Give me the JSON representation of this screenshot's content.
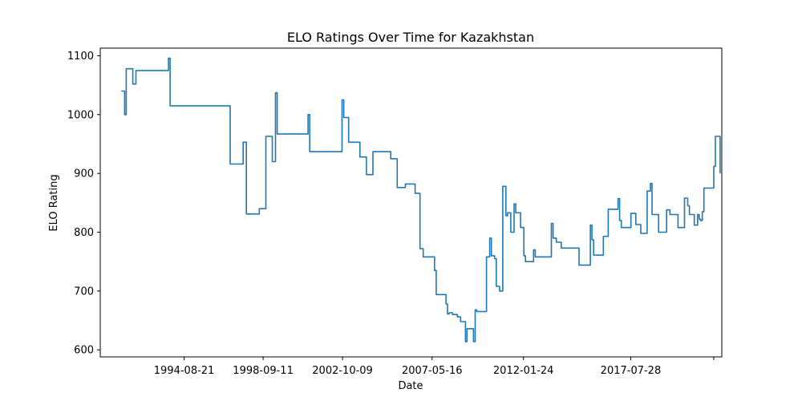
{
  "chart_data": {
    "type": "line",
    "title": "ELO Ratings Over Time for Kazakhstan",
    "xlabel": "Date",
    "ylabel": "ELO Rating",
    "grid": false,
    "legend": "none",
    "x_tick_labels": [
      "1994-08-21",
      "1998-09-11",
      "2002-10-09",
      "2007-05-16",
      "2012-01-24",
      "2017-07-28",
      ""
    ],
    "x_tick_dates": [
      "1994-08-21",
      "1998-09-11",
      "2002-10-09",
      "2007-05-16",
      "2012-01-24",
      "2017-07-28",
      "2021-11-01"
    ],
    "xlim": [
      "1990-05-01",
      "2022-04-01"
    ],
    "y_ticks": [
      600,
      700,
      800,
      900,
      1000,
      1100
    ],
    "ylim": [
      588,
      1113
    ],
    "series": [
      {
        "color": "#1f77b4",
        "points": [
          [
            "1991-06-01",
            1040
          ],
          [
            "1991-07-01",
            1040
          ],
          [
            "1991-08-01",
            1000
          ],
          [
            "1991-09-01",
            1078
          ],
          [
            "1991-12-01",
            1078
          ],
          [
            "1992-01-01",
            1052
          ],
          [
            "1992-03-01",
            1075
          ],
          [
            "1993-10-01",
            1075
          ],
          [
            "1993-11-01",
            1096
          ],
          [
            "1993-12-01",
            1015
          ],
          [
            "1996-11-01",
            1015
          ],
          [
            "1997-01-01",
            916
          ],
          [
            "1997-07-01",
            916
          ],
          [
            "1997-09-01",
            953
          ],
          [
            "1997-11-01",
            831
          ],
          [
            "1998-05-01",
            831
          ],
          [
            "1998-07-01",
            840
          ],
          [
            "1998-11-01",
            963
          ],
          [
            "1999-01-01",
            963
          ],
          [
            "1999-03-01",
            920
          ],
          [
            "1999-05-01",
            1037
          ],
          [
            "1999-06-01",
            967
          ],
          [
            "2000-12-01",
            967
          ],
          [
            "2001-01-01",
            1000
          ],
          [
            "2001-02-01",
            937
          ],
          [
            "2002-09-01",
            937
          ],
          [
            "2002-10-01",
            1025
          ],
          [
            "2002-11-01",
            995
          ],
          [
            "2003-01-01",
            995
          ],
          [
            "2003-02-01",
            953
          ],
          [
            "2003-08-01",
            953
          ],
          [
            "2003-09-01",
            928
          ],
          [
            "2003-11-01",
            928
          ],
          [
            "2004-01-01",
            898
          ],
          [
            "2004-03-01",
            898
          ],
          [
            "2004-05-01",
            937
          ],
          [
            "2005-02-01",
            937
          ],
          [
            "2005-04-01",
            925
          ],
          [
            "2005-07-01",
            925
          ],
          [
            "2005-08-01",
            876
          ],
          [
            "2005-11-01",
            876
          ],
          [
            "2006-01-01",
            882
          ],
          [
            "2006-06-01",
            882
          ],
          [
            "2006-07-01",
            866
          ],
          [
            "2006-08-01",
            866
          ],
          [
            "2006-10-01",
            772
          ],
          [
            "2006-12-01",
            758
          ],
          [
            "2007-06-01",
            758
          ],
          [
            "2007-07-01",
            735
          ],
          [
            "2007-08-01",
            694
          ],
          [
            "2007-12-01",
            694
          ],
          [
            "2008-02-01",
            678
          ],
          [
            "2008-03-01",
            661
          ],
          [
            "2008-04-01",
            663
          ],
          [
            "2008-06-01",
            660
          ],
          [
            "2008-09-01",
            656
          ],
          [
            "2008-11-01",
            648
          ],
          [
            "2009-02-01",
            614
          ],
          [
            "2009-03-01",
            636
          ],
          [
            "2009-06-01",
            636
          ],
          [
            "2009-07-01",
            614
          ],
          [
            "2009-08-01",
            668
          ],
          [
            "2009-09-01",
            665
          ],
          [
            "2010-01-01",
            665
          ],
          [
            "2010-03-01",
            758
          ],
          [
            "2010-05-01",
            790
          ],
          [
            "2010-06-01",
            760
          ],
          [
            "2010-08-01",
            755
          ],
          [
            "2010-09-01",
            708
          ],
          [
            "2010-11-01",
            700
          ],
          [
            "2011-01-01",
            878
          ],
          [
            "2011-02-01",
            878
          ],
          [
            "2011-03-01",
            828
          ],
          [
            "2011-04-01",
            833
          ],
          [
            "2011-05-01",
            833
          ],
          [
            "2011-06-01",
            800
          ],
          [
            "2011-08-01",
            848
          ],
          [
            "2011-09-01",
            833
          ],
          [
            "2011-11-01",
            833
          ],
          [
            "2011-12-01",
            808
          ],
          [
            "2012-01-01",
            808
          ],
          [
            "2012-02-01",
            760
          ],
          [
            "2012-03-01",
            750
          ],
          [
            "2012-07-01",
            750
          ],
          [
            "2012-08-01",
            770
          ],
          [
            "2012-09-01",
            758
          ],
          [
            "2013-06-01",
            758
          ],
          [
            "2013-07-01",
            815
          ],
          [
            "2013-08-01",
            790
          ],
          [
            "2013-10-01",
            783
          ],
          [
            "2013-12-01",
            783
          ],
          [
            "2014-01-01",
            773
          ],
          [
            "2014-11-01",
            773
          ],
          [
            "2014-12-01",
            744
          ],
          [
            "2015-06-01",
            744
          ],
          [
            "2015-07-01",
            812
          ],
          [
            "2015-08-01",
            787
          ],
          [
            "2015-09-01",
            761
          ],
          [
            "2016-01-01",
            761
          ],
          [
            "2016-03-01",
            793
          ],
          [
            "2016-05-01",
            793
          ],
          [
            "2016-06-01",
            839
          ],
          [
            "2016-11-01",
            839
          ],
          [
            "2016-12-01",
            857
          ],
          [
            "2017-01-01",
            820
          ],
          [
            "2017-02-01",
            808
          ],
          [
            "2017-07-01",
            808
          ],
          [
            "2017-08-01",
            832
          ],
          [
            "2017-10-01",
            832
          ],
          [
            "2017-11-01",
            813
          ],
          [
            "2018-01-01",
            813
          ],
          [
            "2018-02-01",
            798
          ],
          [
            "2018-05-01",
            798
          ],
          [
            "2018-06-01",
            870
          ],
          [
            "2018-08-01",
            883
          ],
          [
            "2018-09-01",
            830
          ],
          [
            "2018-12-01",
            830
          ],
          [
            "2019-01-01",
            800
          ],
          [
            "2019-05-01",
            800
          ],
          [
            "2019-06-01",
            838
          ],
          [
            "2019-08-01",
            830
          ],
          [
            "2019-12-01",
            830
          ],
          [
            "2020-01-01",
            808
          ],
          [
            "2020-03-01",
            808
          ],
          [
            "2020-05-01",
            858
          ],
          [
            "2020-07-01",
            845
          ],
          [
            "2020-08-01",
            830
          ],
          [
            "2020-10-01",
            830
          ],
          [
            "2020-11-01",
            812
          ],
          [
            "2021-01-01",
            830
          ],
          [
            "2021-02-01",
            822
          ],
          [
            "2021-03-01",
            820
          ],
          [
            "2021-04-01",
            835
          ],
          [
            "2021-05-01",
            875
          ],
          [
            "2021-10-01",
            875
          ],
          [
            "2021-11-01",
            912
          ],
          [
            "2021-12-01",
            963
          ],
          [
            "2022-02-01",
            963
          ],
          [
            "2022-03-01",
            900
          ]
        ]
      }
    ]
  }
}
